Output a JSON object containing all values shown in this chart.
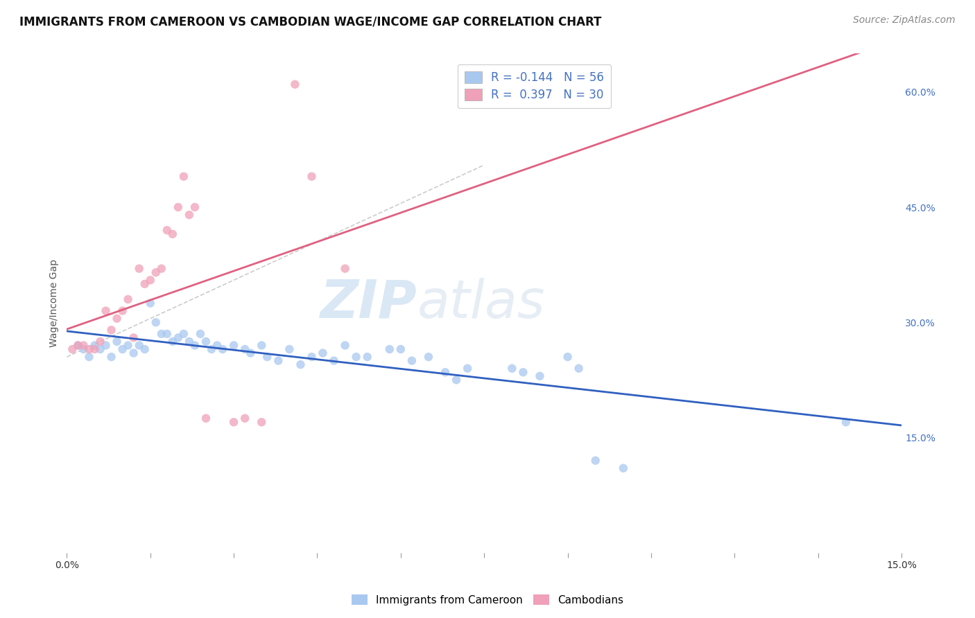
{
  "title": "IMMIGRANTS FROM CAMEROON VS CAMBODIAN WAGE/INCOME GAP CORRELATION CHART",
  "source": "Source: ZipAtlas.com",
  "ylabel": "Wage/Income Gap",
  "xmin": 0.0,
  "xmax": 0.15,
  "ymin": 0.0,
  "ymax": 0.65,
  "y_tick_labels_right": [
    "15.0%",
    "30.0%",
    "45.0%",
    "60.0%"
  ],
  "y_tick_values_right": [
    0.15,
    0.3,
    0.45,
    0.6
  ],
  "r_cameroon": -0.144,
  "n_cameroon": 56,
  "r_cambodian": 0.397,
  "n_cambodian": 30,
  "legend_label_1": "Immigrants from Cameroon",
  "legend_label_2": "Cambodians",
  "color_cameroon": "#A8C8F0",
  "color_cambodian": "#F0A0B8",
  "trendline_color_cameroon": "#3060C0",
  "trendline_color_cambodian": "#E06080",
  "background_color": "#FFFFFF",
  "cameroon_points": [
    [
      0.002,
      0.27
    ],
    [
      0.003,
      0.265
    ],
    [
      0.004,
      0.255
    ],
    [
      0.005,
      0.27
    ],
    [
      0.006,
      0.265
    ],
    [
      0.007,
      0.27
    ],
    [
      0.008,
      0.255
    ],
    [
      0.009,
      0.275
    ],
    [
      0.01,
      0.265
    ],
    [
      0.011,
      0.27
    ],
    [
      0.012,
      0.26
    ],
    [
      0.013,
      0.27
    ],
    [
      0.014,
      0.265
    ],
    [
      0.015,
      0.325
    ],
    [
      0.016,
      0.3
    ],
    [
      0.017,
      0.285
    ],
    [
      0.018,
      0.285
    ],
    [
      0.019,
      0.275
    ],
    [
      0.02,
      0.28
    ],
    [
      0.021,
      0.285
    ],
    [
      0.022,
      0.275
    ],
    [
      0.023,
      0.27
    ],
    [
      0.024,
      0.285
    ],
    [
      0.025,
      0.275
    ],
    [
      0.026,
      0.265
    ],
    [
      0.027,
      0.27
    ],
    [
      0.028,
      0.265
    ],
    [
      0.03,
      0.27
    ],
    [
      0.032,
      0.265
    ],
    [
      0.033,
      0.26
    ],
    [
      0.035,
      0.27
    ],
    [
      0.036,
      0.255
    ],
    [
      0.038,
      0.25
    ],
    [
      0.04,
      0.265
    ],
    [
      0.042,
      0.245
    ],
    [
      0.044,
      0.255
    ],
    [
      0.046,
      0.26
    ],
    [
      0.048,
      0.25
    ],
    [
      0.05,
      0.27
    ],
    [
      0.052,
      0.255
    ],
    [
      0.054,
      0.255
    ],
    [
      0.058,
      0.265
    ],
    [
      0.06,
      0.265
    ],
    [
      0.062,
      0.25
    ],
    [
      0.065,
      0.255
    ],
    [
      0.068,
      0.235
    ],
    [
      0.07,
      0.225
    ],
    [
      0.072,
      0.24
    ],
    [
      0.08,
      0.24
    ],
    [
      0.082,
      0.235
    ],
    [
      0.085,
      0.23
    ],
    [
      0.09,
      0.255
    ],
    [
      0.092,
      0.24
    ],
    [
      0.095,
      0.12
    ],
    [
      0.1,
      0.11
    ],
    [
      0.14,
      0.17
    ]
  ],
  "cambodian_points": [
    [
      0.001,
      0.265
    ],
    [
      0.002,
      0.27
    ],
    [
      0.003,
      0.27
    ],
    [
      0.004,
      0.265
    ],
    [
      0.005,
      0.265
    ],
    [
      0.006,
      0.275
    ],
    [
      0.007,
      0.315
    ],
    [
      0.008,
      0.29
    ],
    [
      0.009,
      0.305
    ],
    [
      0.01,
      0.315
    ],
    [
      0.011,
      0.33
    ],
    [
      0.012,
      0.28
    ],
    [
      0.013,
      0.37
    ],
    [
      0.014,
      0.35
    ],
    [
      0.015,
      0.355
    ],
    [
      0.016,
      0.365
    ],
    [
      0.017,
      0.37
    ],
    [
      0.018,
      0.42
    ],
    [
      0.019,
      0.415
    ],
    [
      0.02,
      0.45
    ],
    [
      0.021,
      0.49
    ],
    [
      0.022,
      0.44
    ],
    [
      0.023,
      0.45
    ],
    [
      0.025,
      0.175
    ],
    [
      0.03,
      0.17
    ],
    [
      0.032,
      0.175
    ],
    [
      0.035,
      0.17
    ],
    [
      0.041,
      0.61
    ],
    [
      0.044,
      0.49
    ],
    [
      0.05,
      0.37
    ]
  ],
  "title_fontsize": 12,
  "axis_label_fontsize": 10,
  "tick_fontsize": 10,
  "legend_fontsize": 12,
  "source_fontsize": 10,
  "watermark_fontsize": 55,
  "scatter_size": 80
}
